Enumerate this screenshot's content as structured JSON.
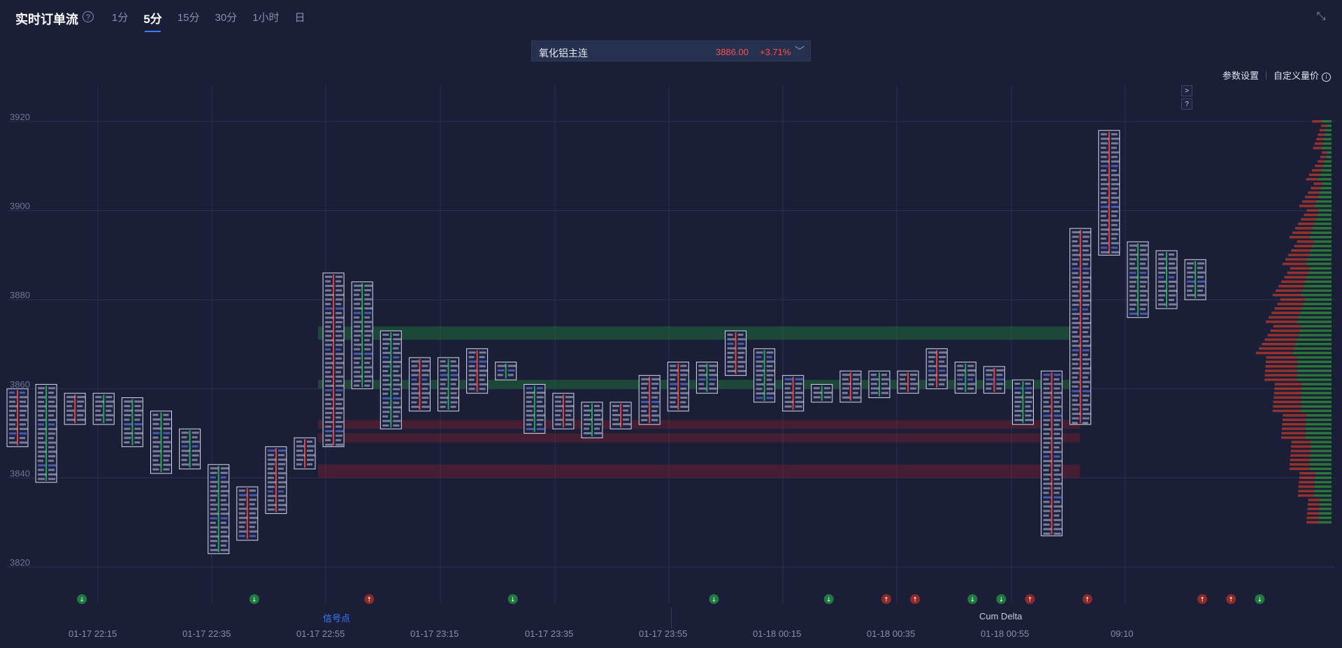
{
  "header": {
    "title": "实时订单流",
    "help_icon": "question-circle-icon",
    "tabs": [
      {
        "label": "1分",
        "active": false
      },
      {
        "label": "5分",
        "active": true
      },
      {
        "label": "15分",
        "active": false
      },
      {
        "label": "30分",
        "active": false
      },
      {
        "label": "1小时",
        "active": false
      },
      {
        "label": "日",
        "active": false
      }
    ],
    "collapse_icon": "collapse-arrows-icon"
  },
  "instrument": {
    "name": "氧化铝主连",
    "price": "3886.00",
    "change": "+3.71%",
    "chevron_icon": "chevron-down-icon"
  },
  "toolbar": {
    "settings_label": "参数设置",
    "custom_price_label": "自定义量价",
    "info_icon": "info-circle-icon"
  },
  "side_buttons": [
    ">",
    "?"
  ],
  "bottom": {
    "signal_label": "信号点",
    "cum_delta_label": "Cum Delta"
  },
  "colors": {
    "background": "#1a1e36",
    "up": "#ff4d4f",
    "down": "#1f8f4a",
    "accent": "#3b7cff"
  },
  "chart_data": {
    "type": "footprint",
    "ylim": [
      3812,
      3932
    ],
    "yticks": [
      "3920",
      "3900",
      "3880",
      "3860",
      "3840",
      "3820"
    ],
    "xticks": [
      "01-17 22:15",
      "01-17 22:35",
      "01-17 22:55",
      "01-17 23:15",
      "01-17 23:35",
      "01-17 23:55",
      "01-18 00:15",
      "01-18 00:35",
      "01-18 00:55",
      "09:10"
    ],
    "candles": [
      {
        "low": 3847,
        "high": 3860,
        "dir": "up"
      },
      {
        "low": 3839,
        "high": 3861,
        "dir": "down"
      },
      {
        "low": 3852,
        "high": 3859,
        "dir": "up"
      },
      {
        "low": 3852,
        "high": 3859,
        "dir": "down"
      },
      {
        "low": 3847,
        "high": 3858,
        "dir": "down"
      },
      {
        "low": 3841,
        "high": 3855,
        "dir": "down"
      },
      {
        "low": 3842,
        "high": 3851,
        "dir": "down"
      },
      {
        "low": 3823,
        "high": 3843,
        "dir": "down"
      },
      {
        "low": 3826,
        "high": 3838,
        "dir": "up"
      },
      {
        "low": 3832,
        "high": 3847,
        "dir": "up"
      },
      {
        "low": 3842,
        "high": 3849,
        "dir": "up"
      },
      {
        "low": 3847,
        "high": 3886,
        "dir": "up"
      },
      {
        "low": 3860,
        "high": 3884,
        "dir": "down"
      },
      {
        "low": 3851,
        "high": 3873,
        "dir": "down"
      },
      {
        "low": 3855,
        "high": 3867,
        "dir": "up"
      },
      {
        "low": 3855,
        "high": 3867,
        "dir": "down"
      },
      {
        "low": 3859,
        "high": 3869,
        "dir": "up"
      },
      {
        "low": 3862,
        "high": 3866,
        "dir": "down"
      },
      {
        "low": 3850,
        "high": 3861,
        "dir": "down"
      },
      {
        "low": 3851,
        "high": 3859,
        "dir": "up"
      },
      {
        "low": 3849,
        "high": 3857,
        "dir": "down"
      },
      {
        "low": 3851,
        "high": 3857,
        "dir": "up"
      },
      {
        "low": 3852,
        "high": 3863,
        "dir": "up"
      },
      {
        "low": 3855,
        "high": 3866,
        "dir": "up"
      },
      {
        "low": 3859,
        "high": 3866,
        "dir": "down"
      },
      {
        "low": 3863,
        "high": 3873,
        "dir": "up"
      },
      {
        "low": 3857,
        "high": 3869,
        "dir": "down"
      },
      {
        "low": 3855,
        "high": 3863,
        "dir": "up"
      },
      {
        "low": 3857,
        "high": 3861,
        "dir": "down"
      },
      {
        "low": 3857,
        "high": 3864,
        "dir": "up"
      },
      {
        "low": 3858,
        "high": 3864,
        "dir": "down"
      },
      {
        "low": 3859,
        "high": 3864,
        "dir": "up"
      },
      {
        "low": 3860,
        "high": 3869,
        "dir": "up"
      },
      {
        "low": 3859,
        "high": 3866,
        "dir": "down"
      },
      {
        "low": 3859,
        "high": 3865,
        "dir": "up"
      },
      {
        "low": 3852,
        "high": 3862,
        "dir": "down"
      },
      {
        "low": 3827,
        "high": 3864,
        "dir": "up"
      },
      {
        "low": 3852,
        "high": 3896,
        "dir": "up"
      },
      {
        "low": 3890,
        "high": 3918,
        "dir": "up"
      },
      {
        "low": 3876,
        "high": 3893,
        "dir": "down"
      },
      {
        "low": 3878,
        "high": 3891,
        "dir": "down"
      },
      {
        "low": 3880,
        "high": 3889,
        "dir": "down"
      }
    ],
    "highlight_bands": [
      {
        "from": 3871,
        "to": 3874,
        "color": "green"
      },
      {
        "from": 3860,
        "to": 3862,
        "color": "green"
      },
      {
        "from": 3851,
        "to": 3853,
        "color": "red"
      },
      {
        "from": 3848,
        "to": 3850,
        "color": "red"
      },
      {
        "from": 3840,
        "to": 3843,
        "color": "red"
      }
    ],
    "signals": [
      {
        "x_index": 2,
        "type": "down-arrow",
        "color": "green"
      },
      {
        "x_index": 8,
        "type": "down-arrow",
        "color": "green"
      },
      {
        "x_index": 12,
        "type": "up-arrow",
        "color": "red"
      },
      {
        "x_index": 17,
        "type": "down-arrow",
        "color": "green"
      },
      {
        "x_index": 24,
        "type": "down-arrow",
        "color": "green"
      },
      {
        "x_index": 28,
        "type": "down-arrow",
        "color": "green"
      },
      {
        "x_index": 30,
        "type": "up-arrow",
        "color": "red"
      },
      {
        "x_index": 31,
        "type": "up-arrow",
        "color": "red"
      },
      {
        "x_index": 33,
        "type": "down-arrow",
        "color": "green"
      },
      {
        "x_index": 34,
        "type": "down-arrow",
        "color": "green"
      },
      {
        "x_index": 35,
        "type": "up-arrow",
        "color": "red"
      },
      {
        "x_index": 37,
        "type": "up-arrow",
        "color": "red"
      },
      {
        "x_index": 41,
        "type": "up-arrow",
        "color": "red"
      },
      {
        "x_index": 42,
        "type": "up-arrow",
        "color": "red"
      },
      {
        "x_index": 43,
        "type": "down-arrow",
        "color": "green"
      }
    ]
  }
}
